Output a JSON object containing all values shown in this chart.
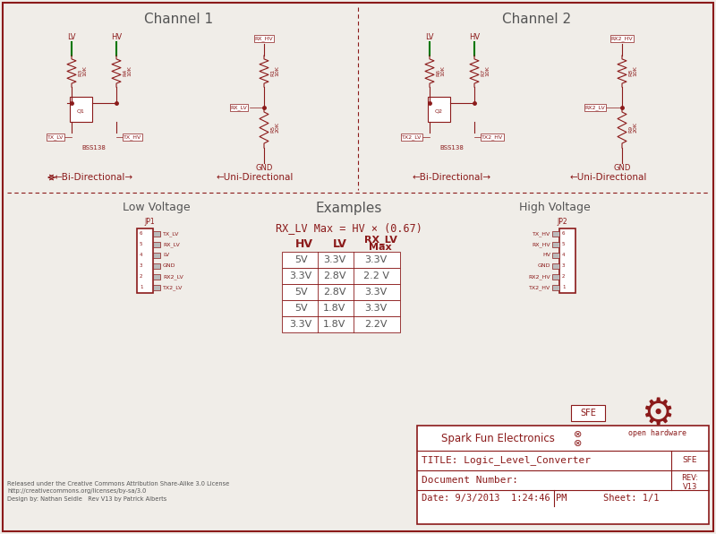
{
  "bg_color": "#f0ede8",
  "dark_red": "#8b1a1a",
  "gray_text": "#555555",
  "green": "#007700",
  "channel1_title": "Channel 1",
  "channel2_title": "Channel 2",
  "bidirectional": "←Bi-Directional→",
  "unidirectional": "←Uni-Directional",
  "low_voltage_title": "Low Voltage",
  "high_voltage_title": "High Voltage",
  "examples_title": "Examples",
  "formula": "RX_LV Max = HV × (0.67)",
  "table_data": [
    [
      "5V",
      "3.3V",
      "3.3V"
    ],
    [
      "3.3V",
      "2.8V",
      "2.2 V"
    ],
    [
      "5V",
      "2.8V",
      "3.3V"
    ],
    [
      "5V",
      "1.8V",
      "3.3V"
    ],
    [
      "3.3V",
      "1.8V",
      "2.2V"
    ]
  ],
  "footer_company": "Spark Fun Electronics",
  "footer_title": "TITLE: Logic_Level_Converter",
  "footer_doc": "Document Number:",
  "footer_date": "Date: 9/3/2013  1:24:46 PM",
  "footer_sheet": "Sheet: 1/1",
  "footer_sfe": "SFE",
  "open_hw_text": "open hardware",
  "cc_text": "Released under the Creative Commons Attribution Share-Alike 3.0 License\nhttp://creativecommons.org/licenses/by-sa/3.0\nDesign by: Nathan Seidle   Rev V13 by Patrick Alberts",
  "jp1_pins": [
    "6",
    "5",
    "4",
    "3",
    "2",
    "1"
  ],
  "jp1_signals": [
    "TX_LV",
    "RX_LV",
    "LV",
    "GND",
    "RX2_LV",
    "TX2_LV"
  ],
  "jp2_signals": [
    "TX_HV",
    "RX_HV",
    "HV",
    "GND",
    "RX2_HV",
    "TX2_HV"
  ]
}
